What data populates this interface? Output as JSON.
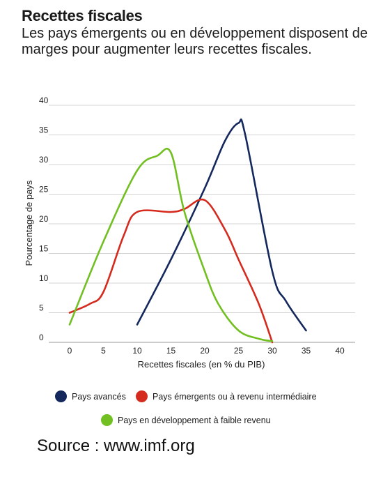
{
  "header": {
    "title": "Recettes fiscales",
    "subtitle": "Les pays émergents ou en développement disposent de marges pour augmenter leurs recettes fiscales."
  },
  "chart_data": {
    "type": "line",
    "xlabel": "Recettes fiscales (en % du PIB)",
    "ylabel": "Pourcentage de pays",
    "xlim": [
      -5,
      43
    ],
    "ylim": [
      0,
      40
    ],
    "x_ticks": [
      "0",
      "5",
      "10",
      "15",
      "20",
      "25",
      "30",
      "35",
      "40"
    ],
    "y_ticks": [
      "0",
      "5",
      "10",
      "15",
      "20",
      "25",
      "30",
      "35",
      "40"
    ],
    "grid": true,
    "legend_position": "bottom",
    "series": [
      {
        "name": "Pays avancés",
        "color": "#14285e",
        "points": [
          [
            10,
            3
          ],
          [
            15,
            14
          ],
          [
            20,
            26
          ],
          [
            23,
            34
          ],
          [
            25,
            37
          ],
          [
            26,
            35
          ],
          [
            30,
            12
          ],
          [
            32,
            7
          ],
          [
            35,
            2
          ]
        ]
      },
      {
        "name": "Pays émergents ou à revenu intermédiaire",
        "color": "#d52b1e",
        "points": [
          [
            0,
            5
          ],
          [
            3,
            6.5
          ],
          [
            5,
            8.5
          ],
          [
            8,
            18
          ],
          [
            10,
            22
          ],
          [
            15,
            22
          ],
          [
            17,
            22.5
          ],
          [
            20,
            24
          ],
          [
            23,
            19
          ],
          [
            25,
            14
          ],
          [
            28,
            6.5
          ],
          [
            30,
            0
          ]
        ]
      },
      {
        "name": "Pays en développement à faible revenu",
        "color": "#72bf21",
        "points": [
          [
            0,
            3
          ],
          [
            5,
            17
          ],
          [
            10,
            29
          ],
          [
            13,
            31.5
          ],
          [
            15,
            32
          ],
          [
            17,
            22
          ],
          [
            20,
            12
          ],
          [
            22,
            6.5
          ],
          [
            25,
            2
          ],
          [
            28,
            0.6
          ],
          [
            30,
            0.2
          ]
        ]
      }
    ]
  },
  "legend": {
    "items": [
      {
        "label": "Pays avancés",
        "color": "#14285e"
      },
      {
        "label": "Pays émergents ou à revenu intermédiaire",
        "color": "#d52b1e"
      },
      {
        "label": "Pays en développement à faible revenu",
        "color": "#72bf21"
      }
    ]
  },
  "footer": {
    "source": "Source : www.imf.org"
  }
}
